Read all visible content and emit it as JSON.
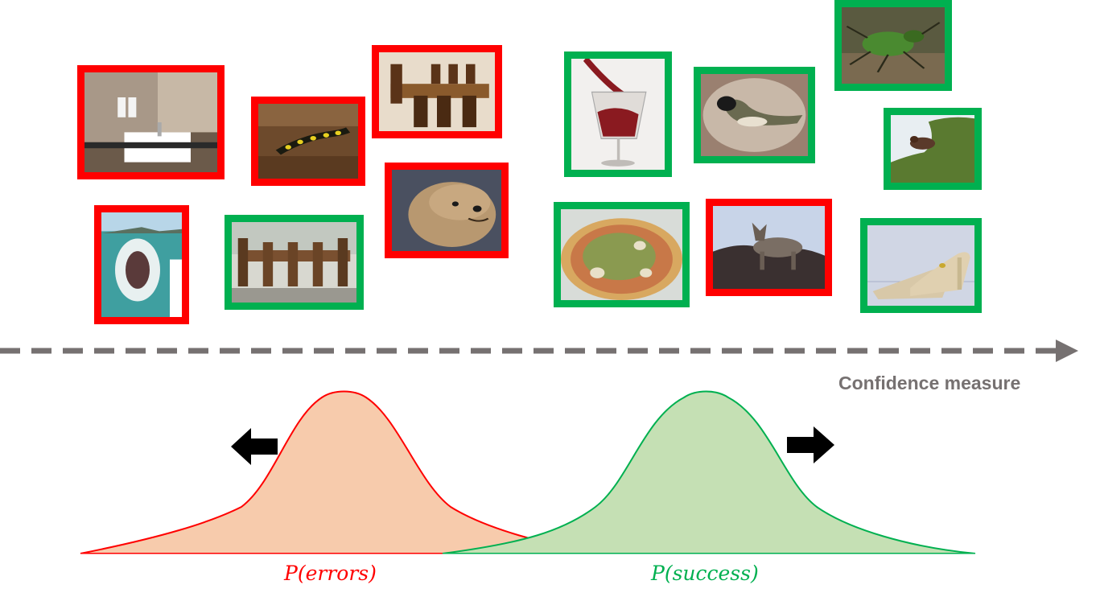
{
  "colors": {
    "error": "#ff0000",
    "success": "#00b050",
    "error_fill": "#f7cbac",
    "success_fill": "#c5e0b4",
    "axis": "#767171"
  },
  "axis": {
    "label": "Confidence measure"
  },
  "distributions": [
    {
      "label": "P(errors)",
      "kind": "error"
    },
    {
      "label": "P(success)",
      "kind": "success"
    }
  ],
  "images": [
    {
      "subject": "bathroom sink",
      "outcome": "error"
    },
    {
      "subject": "salamander",
      "outcome": "error"
    },
    {
      "subject": "dining room chairs",
      "outcome": "error"
    },
    {
      "subject": "poodle",
      "outcome": "error"
    },
    {
      "subject": "shark",
      "outcome": "error"
    },
    {
      "subject": "wooden dining table",
      "outcome": "success"
    },
    {
      "subject": "red wine glass",
      "outcome": "success"
    },
    {
      "subject": "bird",
      "outcome": "success"
    },
    {
      "subject": "green beetle",
      "outcome": "success"
    },
    {
      "subject": "dipper bird",
      "outcome": "success"
    },
    {
      "subject": "pizza",
      "outcome": "success"
    },
    {
      "subject": "husky dog",
      "outcome": "error"
    },
    {
      "subject": "sandals",
      "outcome": "success"
    }
  ]
}
